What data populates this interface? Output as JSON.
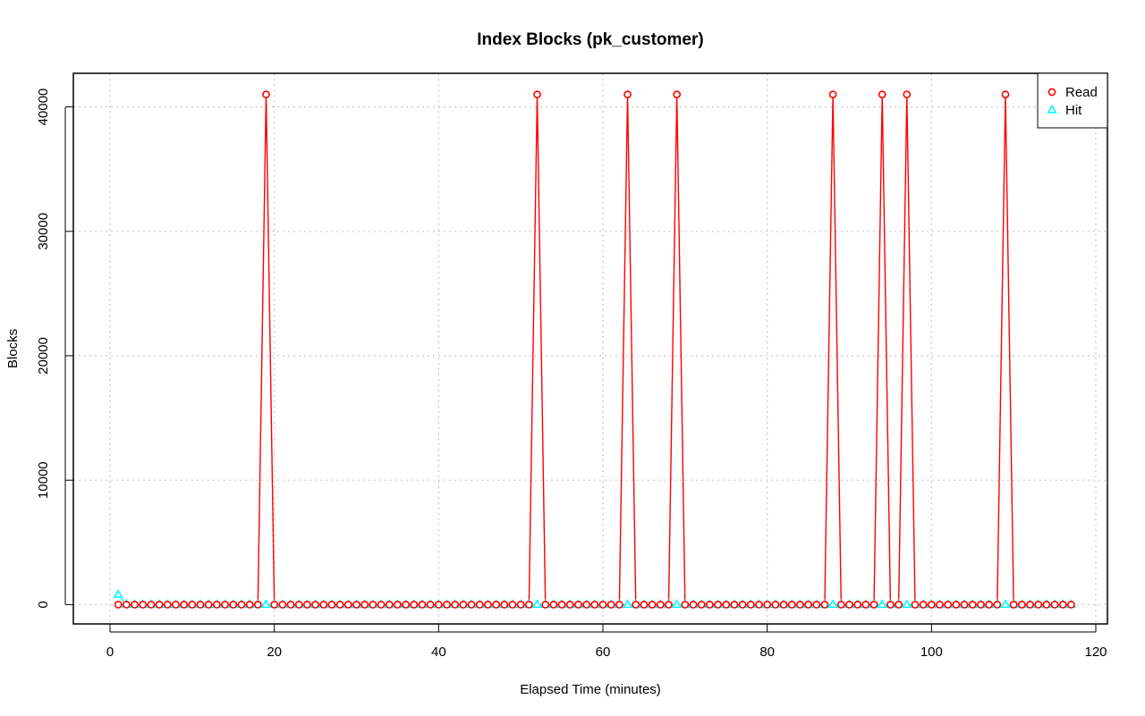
{
  "chart_data": {
    "type": "line",
    "title": "Index Blocks (pk_customer)",
    "xlabel": "Elapsed Time (minutes)",
    "ylabel": "Blocks",
    "xlim": [
      0,
      120
    ],
    "ylim": [
      0,
      42000
    ],
    "x_ticks": [
      0,
      20,
      40,
      60,
      80,
      100,
      120
    ],
    "y_ticks": [
      0,
      10000,
      20000,
      30000,
      40000
    ],
    "grid": true,
    "legend_position": "top-right",
    "x_start": 1,
    "x_end": 117,
    "series": [
      {
        "name": "Read",
        "color": "#ff0000",
        "marker": "circle",
        "baseline": 0,
        "spikes": [
          {
            "x": 19,
            "y": 41000
          },
          {
            "x": 52,
            "y": 41000
          },
          {
            "x": 63,
            "y": 41000
          },
          {
            "x": 69,
            "y": 41000
          },
          {
            "x": 88,
            "y": 41000
          },
          {
            "x": 94,
            "y": 41000
          },
          {
            "x": 97,
            "y": 41000
          },
          {
            "x": 109,
            "y": 41000
          }
        ]
      },
      {
        "name": "Hit",
        "color": "#00ffff",
        "marker": "triangle",
        "baseline": 0,
        "spikes": [
          {
            "x": 1,
            "y": 800
          }
        ]
      }
    ]
  }
}
